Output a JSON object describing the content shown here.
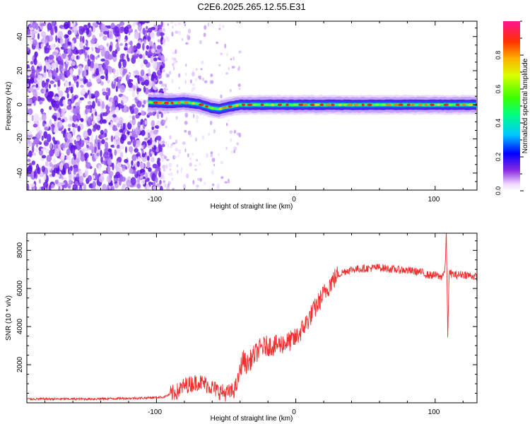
{
  "title": "C2E6.2025.265.12.55.E31",
  "chart_data": [
    {
      "type": "heatmap",
      "xlabel": "Height of straight line (km)",
      "ylabel": "Frequency (Hz)",
      "xlim": [
        -193,
        130
      ],
      "ylim": [
        -50,
        49
      ],
      "xticks": [
        "-100",
        "0",
        "100"
      ],
      "yticks": [
        "-40",
        "-20",
        "0",
        "20",
        "40"
      ],
      "xtick_values": [
        -100,
        0,
        100
      ],
      "ytick_values": [
        -40,
        -20,
        0,
        20,
        40
      ],
      "noise_region_km": [
        -193,
        -95
      ],
      "noise_tail_km": [
        -95,
        -40
      ],
      "signal_start_km": -106,
      "signal_band_half_width_hz": 3,
      "signal_center_hz": [
        [
          -106,
          1.5
        ],
        [
          -90,
          1.0
        ],
        [
          -80,
          1.5
        ],
        [
          -70,
          0.5
        ],
        [
          -60,
          -2.0
        ],
        [
          -55,
          -2.5
        ],
        [
          -50,
          -1.5
        ],
        [
          -40,
          0.0
        ],
        [
          0,
          0.0
        ],
        [
          130,
          0.0
        ]
      ],
      "colorbar": {
        "label": "Normalized spectral amplitude",
        "range": [
          0,
          1
        ],
        "ticks": [
          "0.0",
          "0.2",
          "0.4",
          "0.6",
          "0.8"
        ],
        "tick_values": [
          0,
          0.2,
          0.4,
          0.6,
          0.8
        ]
      }
    },
    {
      "type": "line",
      "xlabel": "Height of straight line (km)",
      "ylabel": "SNR (10 * v/v)",
      "xlim": [
        -193,
        130
      ],
      "ylim": [
        0,
        8900
      ],
      "xticks": [
        "-100",
        "0",
        "100"
      ],
      "yticks": [
        "2000",
        "4000",
        "6000",
        "8000"
      ],
      "xtick_values": [
        -100,
        0,
        100
      ],
      "ytick_values": [
        2000,
        4000,
        6000,
        8000
      ],
      "color": "#f03030",
      "series": [
        {
          "name": "SNR",
          "x": [
            -193,
            -150,
            -110,
            -95,
            -85,
            -80,
            -75,
            -70,
            -65,
            -60,
            -55,
            -50,
            -45,
            -42,
            -40,
            -38,
            -35,
            -30,
            -25,
            -20,
            -15,
            -10,
            -5,
            0,
            5,
            10,
            15,
            20,
            25,
            30,
            35,
            40,
            50,
            60,
            70,
            80,
            90,
            95,
            100,
            104,
            107,
            108,
            109,
            110,
            115,
            120,
            130
          ],
          "y": [
            200,
            200,
            250,
            300,
            600,
            900,
            1000,
            1100,
            1000,
            800,
            600,
            500,
            600,
            1000,
            1700,
            2300,
            2000,
            2500,
            2900,
            3000,
            3000,
            3100,
            3200,
            3400,
            3900,
            4500,
            5100,
            5700,
            6300,
            6700,
            6900,
            7000,
            7050,
            7100,
            7000,
            6950,
            6850,
            6700,
            6700,
            6600,
            6900,
            8900,
            3600,
            6800,
            6700,
            6750,
            6600
          ]
        }
      ]
    }
  ]
}
